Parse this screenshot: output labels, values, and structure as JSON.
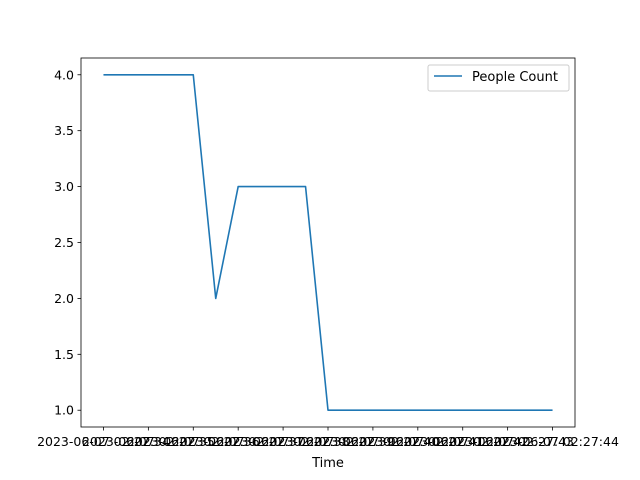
{
  "chart_data": {
    "type": "line",
    "title": "",
    "xlabel": "Time",
    "ylabel": "",
    "x_tick_labels": [
      "2023-06-07 02:27:34",
      "2023-06-07 02:27:35",
      "2023-06-07 02:27:36",
      "2023-06-07 02:27:37",
      "2023-06-07 02:27:38",
      "2023-06-07 02:27:39",
      "2023-06-07 02:27:40",
      "2023-06-07 02:27:41",
      "2023-06-07 02:27:42",
      "2023-06-07 02:27:43",
      "2023-06-07 02:27:44"
    ],
    "x": [
      "2023-06-07 02:27:34",
      "2023-06-07 02:27:36",
      "2023-06-07 02:27:36.5",
      "2023-06-07 02:27:37",
      "2023-06-07 02:27:38.5",
      "2023-06-07 02:27:39",
      "2023-06-07 02:27:44"
    ],
    "series": [
      {
        "name": "People Count",
        "values": [
          4.0,
          4.0,
          2.0,
          3.0,
          3.0,
          1.0,
          1.0
        ],
        "color": "#1f77b4"
      }
    ],
    "ylim": [
      0.85,
      4.15
    ],
    "y_ticks": [
      "1.0",
      "1.5",
      "2.0",
      "2.5",
      "3.0",
      "3.5",
      "4.0"
    ],
    "y_tick_values": [
      1.0,
      1.5,
      2.0,
      2.5,
      3.0,
      3.5,
      4.0
    ],
    "grid": false,
    "legend_placement": "top-right"
  }
}
